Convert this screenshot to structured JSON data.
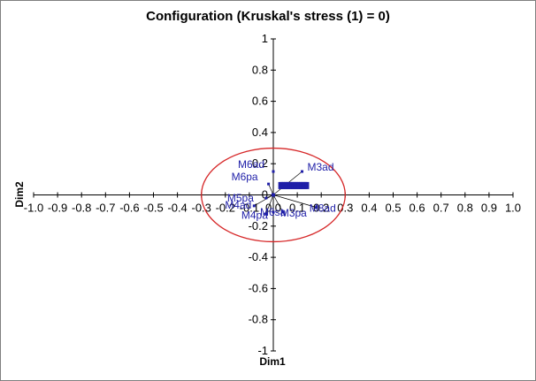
{
  "chart_data": {
    "type": "scatter",
    "title": "Configuration (Kruskal's stress (1) = 0)",
    "xlabel": "Dim1",
    "ylabel": "Dim2",
    "xlim": [
      -1.0,
      1.0
    ],
    "ylim": [
      -1,
      1
    ],
    "x_ticks": [
      "-1.0",
      "-0.9",
      "-0.8",
      "-0.7",
      "-0.6",
      "-0.5",
      "-0.4",
      "-0.3",
      "-0.2",
      "-0.1",
      "0.0",
      "0.1",
      "0.2",
      "0.3",
      "0.4",
      "0.5",
      "0.6",
      "0.7",
      "0.8",
      "0.9",
      "1.0"
    ],
    "y_ticks": [
      "1",
      "0.8",
      "0.6",
      "0.4",
      "0.2",
      "0",
      "-0.2",
      "-0.4",
      "-0.6",
      "-0.8",
      "-1"
    ],
    "circle_radius": 0.3,
    "colors": {
      "points": "#1f1fa8",
      "circle": "#d62728",
      "axes": "#000000",
      "vectors": "#000000"
    },
    "points": [
      {
        "label": "M6ad",
        "x": 0.0,
        "y": 0.15
      },
      {
        "label": "M3ad",
        "x": 0.12,
        "y": 0.15
      },
      {
        "label": "M6pa",
        "x": -0.02,
        "y": 0.07
      },
      {
        "label": "M5pa",
        "x": -0.03,
        "y": -0.02
      },
      {
        "label": "M4ad",
        "x": -0.08,
        "y": -0.07
      },
      {
        "label": "M4pa",
        "x": -0.03,
        "y": -0.12
      },
      {
        "label": "M6sa",
        "x": 0.0,
        "y": -0.11
      },
      {
        "label": "M3pa",
        "x": 0.04,
        "y": -0.11
      },
      {
        "label": "M8ad",
        "x": 0.18,
        "y": -0.08
      }
    ],
    "cluster": {
      "x_from": 0.03,
      "x_to": 0.14,
      "y": 0.06
    }
  }
}
